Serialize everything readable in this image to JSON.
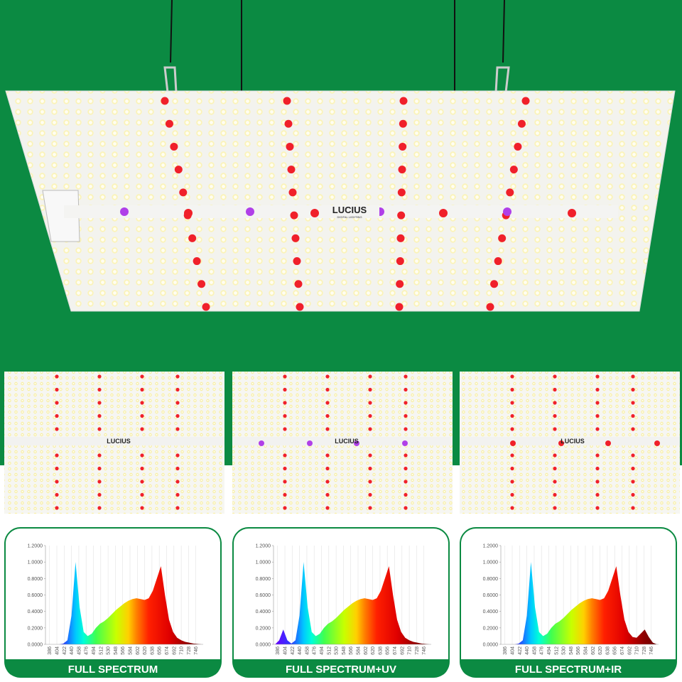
{
  "product": {
    "brand": "LUCIUS",
    "tagline": "DIGITAL LIGHTING"
  },
  "chart_data": [
    {
      "type": "area",
      "title": "FULL SPECTRUM",
      "x": [
        380,
        390,
        400,
        410,
        420,
        430,
        440,
        450,
        460,
        470,
        480,
        490,
        500,
        510,
        520,
        530,
        540,
        550,
        560,
        570,
        580,
        590,
        600,
        610,
        620,
        630,
        640,
        650,
        660,
        670,
        680,
        690,
        700,
        710,
        720,
        730,
        740,
        750,
        760
      ],
      "values": [
        0,
        0,
        0,
        0,
        0.01,
        0.05,
        0.35,
        1.0,
        0.45,
        0.15,
        0.1,
        0.13,
        0.2,
        0.25,
        0.28,
        0.32,
        0.37,
        0.42,
        0.46,
        0.5,
        0.53,
        0.55,
        0.56,
        0.55,
        0.54,
        0.56,
        0.65,
        0.8,
        0.95,
        0.6,
        0.3,
        0.15,
        0.08,
        0.05,
        0.03,
        0.02,
        0.01,
        0.005,
        0
      ],
      "xlim": [
        376,
        764
      ],
      "xticks": [
        386,
        404,
        422,
        440,
        458,
        476,
        494,
        512,
        530,
        548,
        566,
        584,
        602,
        620,
        638,
        656,
        674,
        692,
        710,
        728,
        746
      ],
      "ylim": [
        0,
        1.2
      ],
      "yticks": [
        {
          "value": 0,
          "label": "0.0000"
        },
        {
          "value": 0.2,
          "label": "0.2000"
        },
        {
          "value": 0.4,
          "label": "0.4000"
        },
        {
          "value": 0.6,
          "label": "0.6000"
        },
        {
          "value": 0.8,
          "label": "0.8000"
        },
        {
          "value": 1.0,
          "label": "1.0000"
        },
        {
          "value": 1.2,
          "label": "1.2000"
        }
      ],
      "grid": true
    },
    {
      "type": "area",
      "title": "FULL SPECTRUM+UV",
      "x": [
        380,
        390,
        400,
        410,
        420,
        430,
        440,
        450,
        460,
        470,
        480,
        490,
        500,
        510,
        520,
        530,
        540,
        550,
        560,
        570,
        580,
        590,
        600,
        610,
        620,
        630,
        640,
        650,
        660,
        670,
        680,
        690,
        700,
        710,
        720,
        730,
        740,
        750,
        760
      ],
      "values": [
        0,
        0.05,
        0.18,
        0.05,
        0.01,
        0.05,
        0.35,
        1.0,
        0.45,
        0.15,
        0.1,
        0.13,
        0.2,
        0.25,
        0.28,
        0.32,
        0.37,
        0.42,
        0.46,
        0.5,
        0.53,
        0.55,
        0.56,
        0.55,
        0.54,
        0.56,
        0.65,
        0.8,
        0.95,
        0.6,
        0.3,
        0.15,
        0.08,
        0.05,
        0.03,
        0.02,
        0.01,
        0.005,
        0
      ],
      "xlim": [
        376,
        764
      ],
      "xticks": [
        386,
        404,
        422,
        440,
        458,
        476,
        494,
        512,
        530,
        548,
        566,
        584,
        602,
        620,
        638,
        656,
        674,
        692,
        710,
        728,
        746
      ],
      "ylim": [
        0,
        1.2
      ],
      "yticks": [
        {
          "value": 0,
          "label": "0.0000"
        },
        {
          "value": 0.2,
          "label": "0.2000"
        },
        {
          "value": 0.4,
          "label": "0.4000"
        },
        {
          "value": 0.6,
          "label": "0.6000"
        },
        {
          "value": 0.8,
          "label": "0.8000"
        },
        {
          "value": 1.0,
          "label": "1.0000"
        },
        {
          "value": 1.2,
          "label": "1.2000"
        }
      ],
      "grid": true
    },
    {
      "type": "area",
      "title": "FULL SPECTRUM+IR",
      "x": [
        380,
        390,
        400,
        410,
        420,
        430,
        440,
        450,
        460,
        470,
        480,
        490,
        500,
        510,
        520,
        530,
        540,
        550,
        560,
        570,
        580,
        590,
        600,
        610,
        620,
        630,
        640,
        650,
        660,
        670,
        680,
        690,
        700,
        710,
        720,
        730,
        740,
        750,
        760
      ],
      "values": [
        0,
        0,
        0,
        0,
        0.01,
        0.05,
        0.35,
        1.0,
        0.45,
        0.15,
        0.1,
        0.13,
        0.2,
        0.25,
        0.28,
        0.32,
        0.37,
        0.42,
        0.46,
        0.5,
        0.53,
        0.55,
        0.56,
        0.55,
        0.54,
        0.56,
        0.65,
        0.8,
        0.95,
        0.6,
        0.3,
        0.15,
        0.09,
        0.08,
        0.13,
        0.18,
        0.09,
        0.02,
        0
      ],
      "xlim": [
        376,
        764
      ],
      "xticks": [
        386,
        404,
        422,
        440,
        458,
        476,
        494,
        512,
        530,
        548,
        566,
        584,
        602,
        620,
        638,
        656,
        674,
        692,
        710,
        728,
        746
      ],
      "ylim": [
        0,
        1.2
      ],
      "yticks": [
        {
          "value": 0,
          "label": "0.0000"
        },
        {
          "value": 0.2,
          "label": "0.2000"
        },
        {
          "value": 0.4,
          "label": "0.4000"
        },
        {
          "value": 0.6,
          "label": "0.6000"
        },
        {
          "value": 0.8,
          "label": "0.8000"
        },
        {
          "value": 1.0,
          "label": "1.0000"
        },
        {
          "value": 1.2,
          "label": "1.2000"
        }
      ],
      "grid": true
    }
  ]
}
